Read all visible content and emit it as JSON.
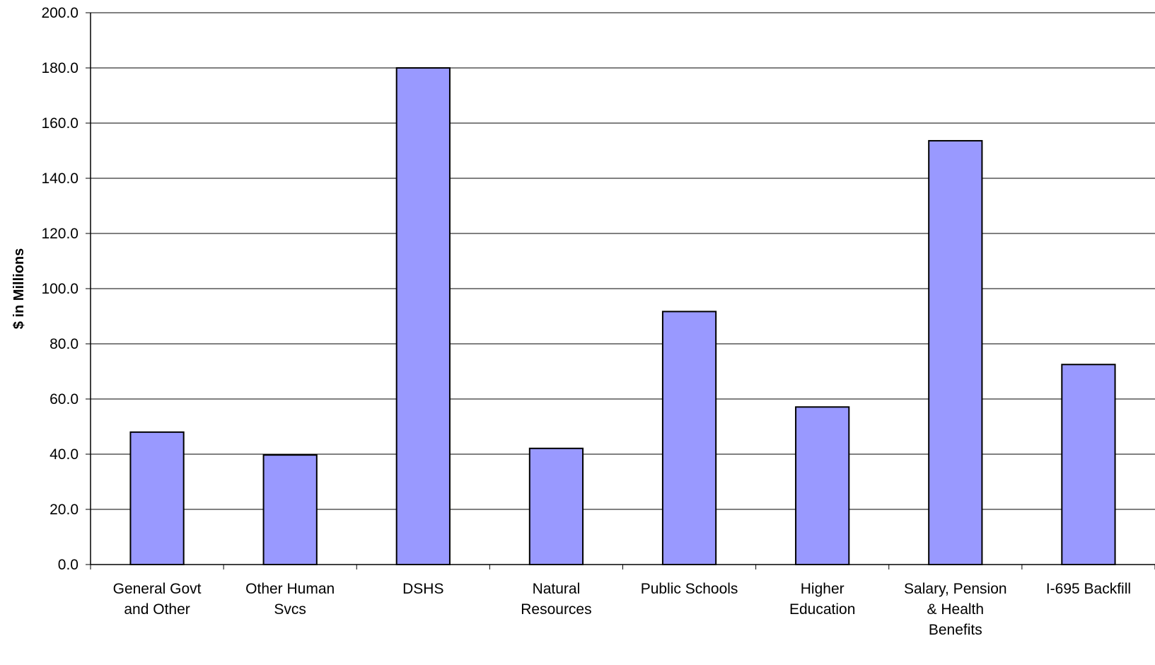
{
  "chart_data": {
    "type": "bar",
    "title": "",
    "xlabel": "",
    "ylabel": "$ in Millions",
    "ylim": [
      0,
      200
    ],
    "ytick_step": 20,
    "ytick_format": "0.0",
    "grid": true,
    "bar_color": "#9999ff",
    "categories": [
      [
        "General Govt",
        "and Other"
      ],
      [
        "Other Human",
        "Svcs"
      ],
      [
        "DSHS"
      ],
      [
        "Natural",
        "Resources"
      ],
      [
        "Public Schools"
      ],
      [
        "Higher",
        "Education"
      ],
      [
        "Salary, Pension",
        "& Health",
        "Benefits"
      ],
      [
        "I-695 Backfill"
      ]
    ],
    "values": [
      48.0,
      39.7,
      180.0,
      42.1,
      91.7,
      57.1,
      153.6,
      72.5
    ]
  }
}
